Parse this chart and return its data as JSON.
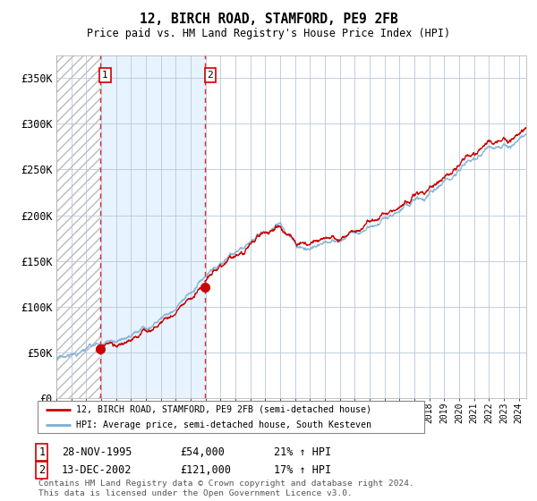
{
  "title": "12, BIRCH ROAD, STAMFORD, PE9 2FB",
  "subtitle": "Price paid vs. HM Land Registry's House Price Index (HPI)",
  "ylabel_ticks": [
    "£0",
    "£50K",
    "£100K",
    "£150K",
    "£200K",
    "£250K",
    "£300K",
    "£350K"
  ],
  "ytick_values": [
    0,
    50000,
    100000,
    150000,
    200000,
    250000,
    300000,
    350000
  ],
  "ylim": [
    0,
    370000
  ],
  "sale1": {
    "date_num": 1995.91,
    "price": 54000,
    "label": "1",
    "hpi_pct": "21%",
    "date_str": "28-NOV-1995"
  },
  "sale2": {
    "date_num": 2002.95,
    "price": 121000,
    "label": "2",
    "hpi_pct": "17%",
    "date_str": "13-DEC-2002"
  },
  "price_color": "#cc0000",
  "hpi_color": "#7bafd4",
  "hpi_fill_color": "#ddeeff",
  "hatch_color": "#bbbbbb",
  "grid_color": "#b8c8d8",
  "legend_label1": "12, BIRCH ROAD, STAMFORD, PE9 2FB (semi-detached house)",
  "legend_label2": "HPI: Average price, semi-detached house, South Kesteven",
  "footer": "Contains HM Land Registry data © Crown copyright and database right 2024.\nThis data is licensed under the Open Government Licence v3.0.",
  "xmin": 1993.0,
  "xmax": 2024.5,
  "hpi_seed": 17,
  "price_seed": 99
}
